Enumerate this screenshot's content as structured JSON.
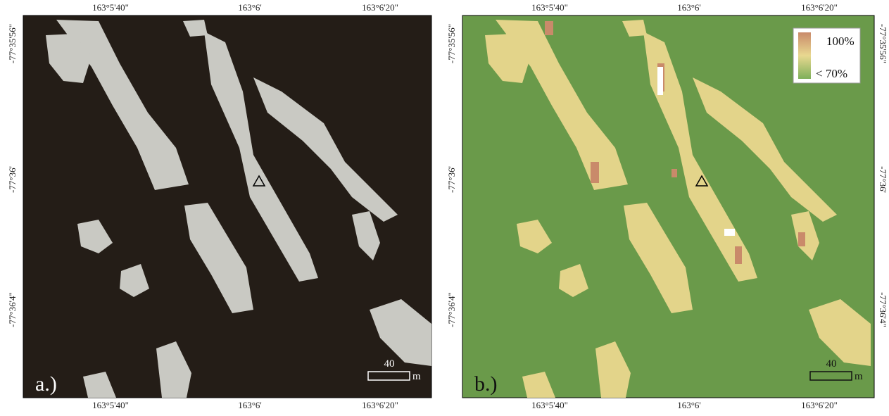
{
  "panels": [
    {
      "label": "a.)",
      "top_ticks": [
        "163°5'40\"",
        "163°6'",
        "163°6'20\""
      ],
      "bottom_ticks": [
        "163°5'40\"",
        "163°6'",
        "163°6'20\""
      ],
      "left_ticks": [
        "-77°35'56\"",
        "-77°36'",
        "-77°36'4\""
      ],
      "right_ticks": [],
      "scale_bar": {
        "value": "40",
        "unit": "m"
      }
    },
    {
      "label": "b.)",
      "top_ticks": [
        "163°5'40\"",
        "163°6'",
        "163°6'20\""
      ],
      "bottom_ticks": [
        "163°5'40\"",
        "163°6'",
        "163°6'20\""
      ],
      "left_ticks": [
        "-77°35'56\"",
        "-77°36'",
        "-77°36'4\""
      ],
      "right_ticks": [
        "-77°35'56\"",
        "-77°36'",
        "-77°36'4\""
      ],
      "scale_bar": {
        "value": "40",
        "unit": "m"
      },
      "legend": {
        "high": "100%",
        "low": "< 70%"
      }
    }
  ]
}
